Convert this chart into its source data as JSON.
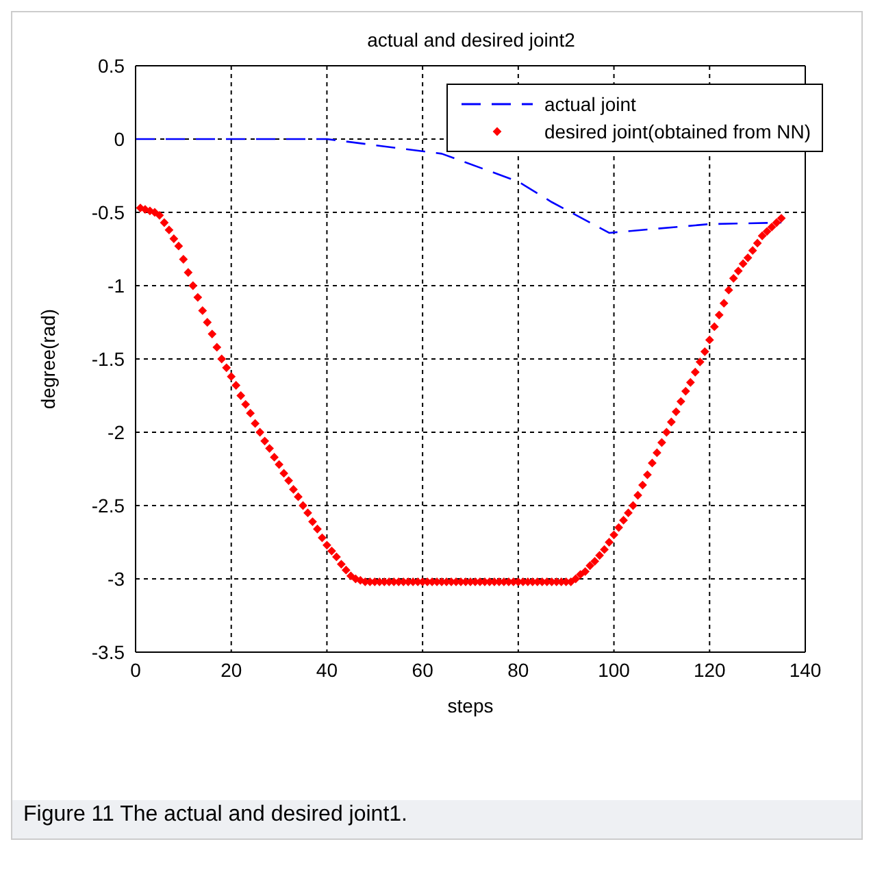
{
  "chart_data": {
    "type": "scatter",
    "title": "actual and desired joint2",
    "xlabel": "steps",
    "ylabel": "degree(rad)",
    "xlim": [
      0,
      140
    ],
    "xticks": [
      0,
      20,
      40,
      60,
      80,
      100,
      120,
      140
    ],
    "ylim": [
      -3.5,
      0.5
    ],
    "yticks": [
      -3.5,
      -3,
      -2.5,
      -2,
      -1.5,
      -1,
      -0.5,
      0,
      0.5
    ],
    "grid": true,
    "legend": "top right",
    "annotations": [
      "Figure 11 The actual and desired joint1."
    ],
    "series": [
      {
        "name": "actual joint",
        "type": "line",
        "color": "#0000ff",
        "line_style": "dashed",
        "marker": "none",
        "x": [
          0,
          40,
          64,
          80,
          87,
          99,
          120,
          135
        ],
        "values": [
          0,
          0,
          -0.1,
          -0.29,
          -0.43,
          -0.64,
          -0.58,
          -0.57
        ]
      },
      {
        "name": "desired joint(obtained from NN)",
        "color": "#ff0000",
        "marker": "diamond",
        "x": [
          1,
          2,
          3,
          4,
          5,
          6,
          7,
          8,
          9,
          10,
          11,
          12,
          13,
          14,
          15,
          16,
          17,
          18,
          19,
          20,
          21,
          22,
          23,
          24,
          25,
          26,
          27,
          28,
          29,
          30,
          31,
          32,
          33,
          34,
          35,
          36,
          37,
          38,
          39,
          40,
          41,
          42,
          43,
          44,
          45,
          46,
          47,
          48,
          49,
          50,
          51,
          52,
          53,
          54,
          55,
          56,
          57,
          58,
          59,
          60,
          61,
          62,
          63,
          64,
          65,
          66,
          67,
          68,
          69,
          70,
          71,
          72,
          73,
          74,
          75,
          76,
          77,
          78,
          79,
          80,
          81,
          82,
          83,
          84,
          85,
          86,
          87,
          88,
          89,
          90,
          91,
          92,
          93,
          94,
          95,
          96,
          97,
          98,
          99,
          100,
          101,
          102,
          103,
          104,
          105,
          106,
          107,
          108,
          109,
          110,
          111,
          112,
          113,
          114,
          115,
          116,
          117,
          118,
          119,
          120,
          121,
          122,
          123,
          124,
          125,
          126,
          127,
          128,
          129,
          130,
          131,
          132,
          133,
          134,
          135
        ],
        "values": [
          -0.47,
          -0.48,
          -0.49,
          -0.5,
          -0.52,
          -0.57,
          -0.62,
          -0.68,
          -0.73,
          -0.82,
          -0.91,
          -1.0,
          -1.08,
          -1.17,
          -1.25,
          -1.33,
          -1.42,
          -1.5,
          -1.56,
          -1.62,
          -1.68,
          -1.75,
          -1.81,
          -1.87,
          -1.94,
          -2.0,
          -2.06,
          -2.11,
          -2.17,
          -2.22,
          -2.28,
          -2.33,
          -2.39,
          -2.44,
          -2.5,
          -2.55,
          -2.61,
          -2.66,
          -2.72,
          -2.77,
          -2.81,
          -2.85,
          -2.9,
          -2.94,
          -2.98,
          -3.0,
          -3.01,
          -3.02,
          -3.02,
          -3.02,
          -3.02,
          -3.02,
          -3.02,
          -3.02,
          -3.02,
          -3.02,
          -3.02,
          -3.02,
          -3.02,
          -3.02,
          -3.02,
          -3.02,
          -3.02,
          -3.02,
          -3.02,
          -3.02,
          -3.02,
          -3.02,
          -3.02,
          -3.02,
          -3.02,
          -3.02,
          -3.02,
          -3.02,
          -3.02,
          -3.02,
          -3.02,
          -3.02,
          -3.02,
          -3.02,
          -3.02,
          -3.02,
          -3.02,
          -3.02,
          -3.02,
          -3.02,
          -3.02,
          -3.02,
          -3.02,
          -3.02,
          -3.02,
          -3.0,
          -2.97,
          -2.95,
          -2.91,
          -2.88,
          -2.84,
          -2.8,
          -2.75,
          -2.7,
          -2.65,
          -2.6,
          -2.55,
          -2.5,
          -2.43,
          -2.36,
          -2.29,
          -2.21,
          -2.14,
          -2.07,
          -2.0,
          -1.93,
          -1.86,
          -1.79,
          -1.72,
          -1.66,
          -1.59,
          -1.52,
          -1.45,
          -1.37,
          -1.28,
          -1.2,
          -1.12,
          -1.03,
          -0.95,
          -0.9,
          -0.85,
          -0.81,
          -0.76,
          -0.71,
          -0.66,
          -0.63,
          -0.6,
          -0.57,
          -0.54
        ]
      }
    ]
  }
}
